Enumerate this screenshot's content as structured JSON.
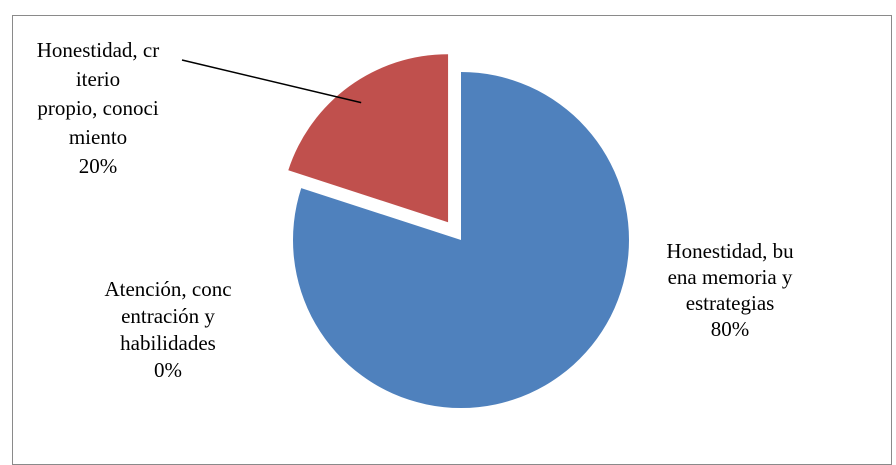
{
  "chart_data": {
    "type": "pie",
    "slices": [
      {
        "lines": [
          "Honestidad, bu",
          "ena memoria y",
          "estrategias"
        ],
        "percent_label": "80%",
        "value": 80,
        "color": "#4F81BD",
        "exploded": false
      },
      {
        "lines": [
          "Atención, conc",
          "entración y",
          "habilidades"
        ],
        "percent_label": "0%",
        "value": 0,
        "color": "#9BBB59",
        "exploded": false
      },
      {
        "lines": [
          "Honestidad, cr",
          "iterio",
          "propio, conoci",
          "miento"
        ],
        "percent_label": "20%",
        "value": 20,
        "color": "#C0504D",
        "exploded": true
      }
    ],
    "start_angle_deg": 0,
    "direction": "clockwise",
    "legend": "none"
  }
}
